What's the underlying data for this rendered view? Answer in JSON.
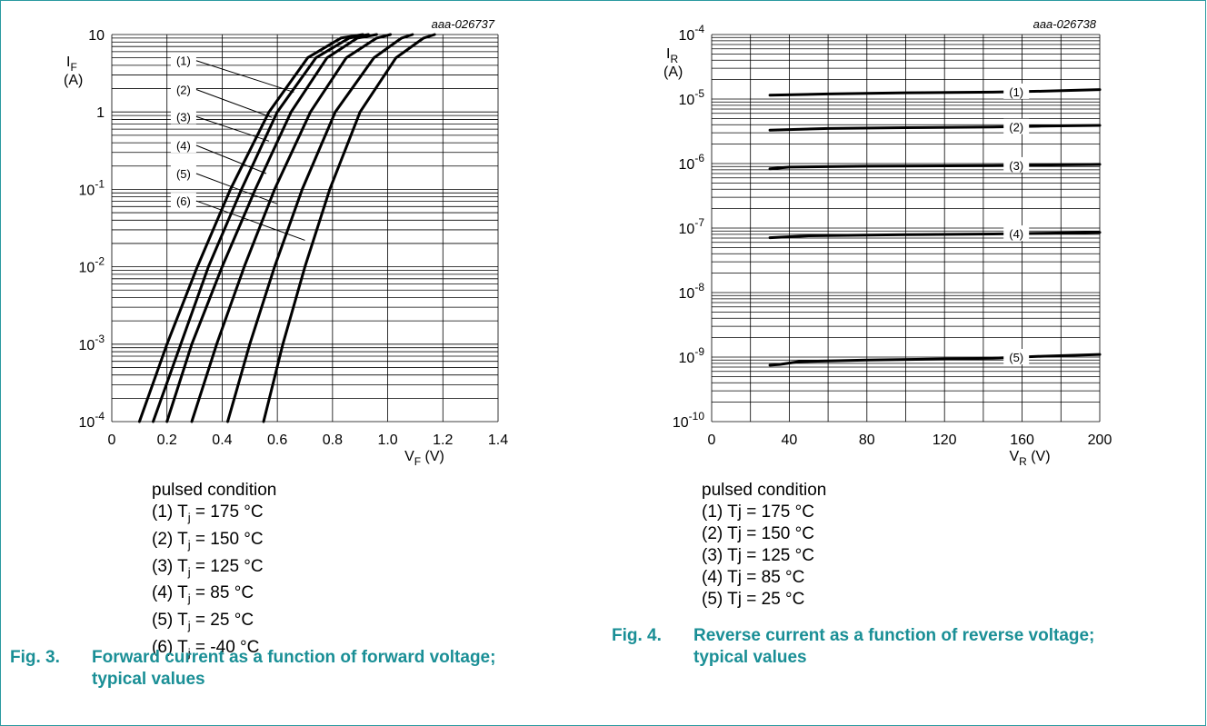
{
  "chart_data": [
    {
      "type": "line",
      "code": "aaa-026737",
      "ylabel_symbol": "I",
      "ylabel_sub": "F",
      "ylabel_unit": "(A)",
      "xlabel_symbol": "V",
      "xlabel_sub": "F",
      "xlabel_unit": "(V)",
      "y_scale": "log",
      "xlim": [
        0,
        1.4
      ],
      "ylim": [
        0.0001,
        10
      ],
      "x_ticks": [
        "0",
        "0.2",
        "0.4",
        "0.6",
        "0.8",
        "1.0",
        "1.2",
        "1.4"
      ],
      "y_ticks": [
        {
          "base": "10",
          "exp": "-4"
        },
        {
          "base": "10",
          "exp": "-3"
        },
        {
          "base": "10",
          "exp": "-2"
        },
        {
          "base": "10",
          "exp": "-1"
        },
        {
          "base": "1",
          "exp": ""
        },
        {
          "base": "10",
          "exp": ""
        }
      ],
      "grid": true,
      "series": [
        {
          "name": "(1)",
          "x": [
            0.1,
            0.2,
            0.31,
            0.43,
            0.57,
            0.71,
            0.83,
            0.91
          ],
          "y": [
            0.0001,
            0.001,
            0.01,
            0.1,
            1,
            5,
            9,
            10
          ]
        },
        {
          "name": "(2)",
          "x": [
            0.15,
            0.25,
            0.35,
            0.47,
            0.6,
            0.74,
            0.86,
            0.93
          ],
          "y": [
            0.0001,
            0.001,
            0.01,
            0.1,
            1,
            5,
            9,
            10
          ]
        },
        {
          "name": "(3)",
          "x": [
            0.2,
            0.29,
            0.4,
            0.52,
            0.65,
            0.78,
            0.89,
            0.96
          ],
          "y": [
            0.0001,
            0.001,
            0.01,
            0.1,
            1,
            5,
            9,
            10
          ]
        },
        {
          "name": "(4)",
          "x": [
            0.29,
            0.38,
            0.48,
            0.59,
            0.72,
            0.85,
            0.96,
            1.01
          ],
          "y": [
            0.0001,
            0.001,
            0.01,
            0.1,
            1,
            5,
            9,
            10
          ]
        },
        {
          "name": "(5)",
          "x": [
            0.42,
            0.5,
            0.59,
            0.69,
            0.81,
            0.95,
            1.05,
            1.09
          ],
          "y": [
            0.0001,
            0.001,
            0.01,
            0.1,
            1,
            5,
            9,
            10
          ]
        },
        {
          "name": "(6)",
          "x": [
            0.55,
            0.62,
            0.7,
            0.79,
            0.9,
            1.03,
            1.13,
            1.17
          ],
          "y": [
            0.0001,
            0.001,
            0.01,
            0.1,
            1,
            5,
            9,
            10
          ]
        }
      ],
      "labels": [
        {
          "text": "(1)",
          "x": 0.26,
          "y": 4.6,
          "tx": 0.66,
          "ty": 1.8
        },
        {
          "text": "(2)",
          "x": 0.26,
          "y": 1.95,
          "tx": 0.58,
          "ty": 0.85
        },
        {
          "text": "(3)",
          "x": 0.26,
          "y": 0.87,
          "tx": 0.57,
          "ty": 0.42
        },
        {
          "text": "(4)",
          "x": 0.26,
          "y": 0.37,
          "tx": 0.56,
          "ty": 0.16
        },
        {
          "text": "(5)",
          "x": 0.26,
          "y": 0.16,
          "tx": 0.6,
          "ty": 0.065
        },
        {
          "text": "(6)",
          "x": 0.26,
          "y": 0.071,
          "tx": 0.7,
          "ty": 0.022
        }
      ],
      "notes_title": "pulsed condition",
      "notes": [
        {
          "pre": "(1) T",
          "sub": "j",
          "post": " = 175 °C"
        },
        {
          "pre": "(2) T",
          "sub": "j",
          "post": " = 150 °C"
        },
        {
          "pre": "(3) T",
          "sub": "j",
          "post": " = 125 °C"
        },
        {
          "pre": "(4) T",
          "sub": "j",
          "post": " = 85 °C"
        },
        {
          "pre": "(5) T",
          "sub": "j",
          "post": " = 25 °C"
        },
        {
          "pre": "(6) T",
          "sub": "j",
          "post": " = -40 °C"
        }
      ],
      "caption_num": "Fig. 3.",
      "caption_text": "Forward current as a function of forward voltage; typical values"
    },
    {
      "type": "line",
      "code": "aaa-026738",
      "ylabel_symbol": "I",
      "ylabel_sub": "R",
      "ylabel_unit": "(A)",
      "xlabel_symbol": "V",
      "xlabel_sub": "R",
      "xlabel_unit": "(V)",
      "y_scale": "log",
      "xlim": [
        0,
        200
      ],
      "ylim": [
        1e-10,
        0.0001
      ],
      "x_ticks": [
        "0",
        "40",
        "80",
        "120",
        "160",
        "200"
      ],
      "y_ticks": [
        {
          "base": "10",
          "exp": "-10"
        },
        {
          "base": "10",
          "exp": "-9"
        },
        {
          "base": "10",
          "exp": "-8"
        },
        {
          "base": "10",
          "exp": "-7"
        },
        {
          "base": "10",
          "exp": "-6"
        },
        {
          "base": "10",
          "exp": "-5"
        },
        {
          "base": "10",
          "exp": "-4"
        }
      ],
      "grid": true,
      "series": [
        {
          "name": "(1)",
          "x": [
            30,
            60,
            100,
            145,
            170,
            200
          ],
          "y": [
            1.15e-05,
            1.2e-05,
            1.25e-05,
            1.28e-05,
            1.32e-05,
            1.4e-05
          ]
        },
        {
          "name": "(2)",
          "x": [
            30,
            60,
            100,
            145,
            170,
            200
          ],
          "y": [
            3.3e-06,
            3.5e-06,
            3.6e-06,
            3.7e-06,
            3.8e-06,
            3.9e-06
          ]
        },
        {
          "name": "(3)",
          "x": [
            30,
            40,
            80,
            145,
            170,
            200
          ],
          "y": [
            8.3e-07,
            8.8e-07,
            9.1e-07,
            9.3e-07,
            9.5e-07,
            9.7e-07
          ]
        },
        {
          "name": "(4)",
          "x": [
            30,
            50,
            100,
            145,
            170,
            200
          ],
          "y": [
            7.1e-08,
            7.6e-08,
            7.9e-08,
            8.1e-08,
            8.3e-08,
            8.6e-08
          ]
        },
        {
          "name": "(5)",
          "x": [
            30,
            35,
            45,
            80,
            145,
            170,
            200
          ],
          "y": [
            7.5e-10,
            7.7e-10,
            8.5e-10,
            9e-10,
            9.6e-10,
            1.03e-09,
            1.1e-09
          ]
        }
      ],
      "labels": [
        {
          "text": "(1)",
          "x": 157,
          "y": 1.3e-05
        },
        {
          "text": "(2)",
          "x": 157,
          "y": 3.7e-06
        },
        {
          "text": "(3)",
          "x": 157,
          "y": 9.4e-07
        },
        {
          "text": "(4)",
          "x": 157,
          "y": 8.2e-08
        },
        {
          "text": "(5)",
          "x": 157,
          "y": 1e-09
        }
      ],
      "notes_title": "pulsed condition",
      "notes": [
        {
          "pre": "(1) Tj = 175 °C",
          "sub": "",
          "post": ""
        },
        {
          "pre": "(2) Tj = 150 °C",
          "sub": "",
          "post": ""
        },
        {
          "pre": "(3) Tj = 125 °C",
          "sub": "",
          "post": ""
        },
        {
          "pre": "(4) Tj = 85 °C",
          "sub": "",
          "post": ""
        },
        {
          "pre": "(5) Tj = 25 °C",
          "sub": "",
          "post": ""
        }
      ],
      "caption_num": "Fig. 4.",
      "caption_text": "Reverse current as a function of reverse voltage; typical values"
    }
  ]
}
